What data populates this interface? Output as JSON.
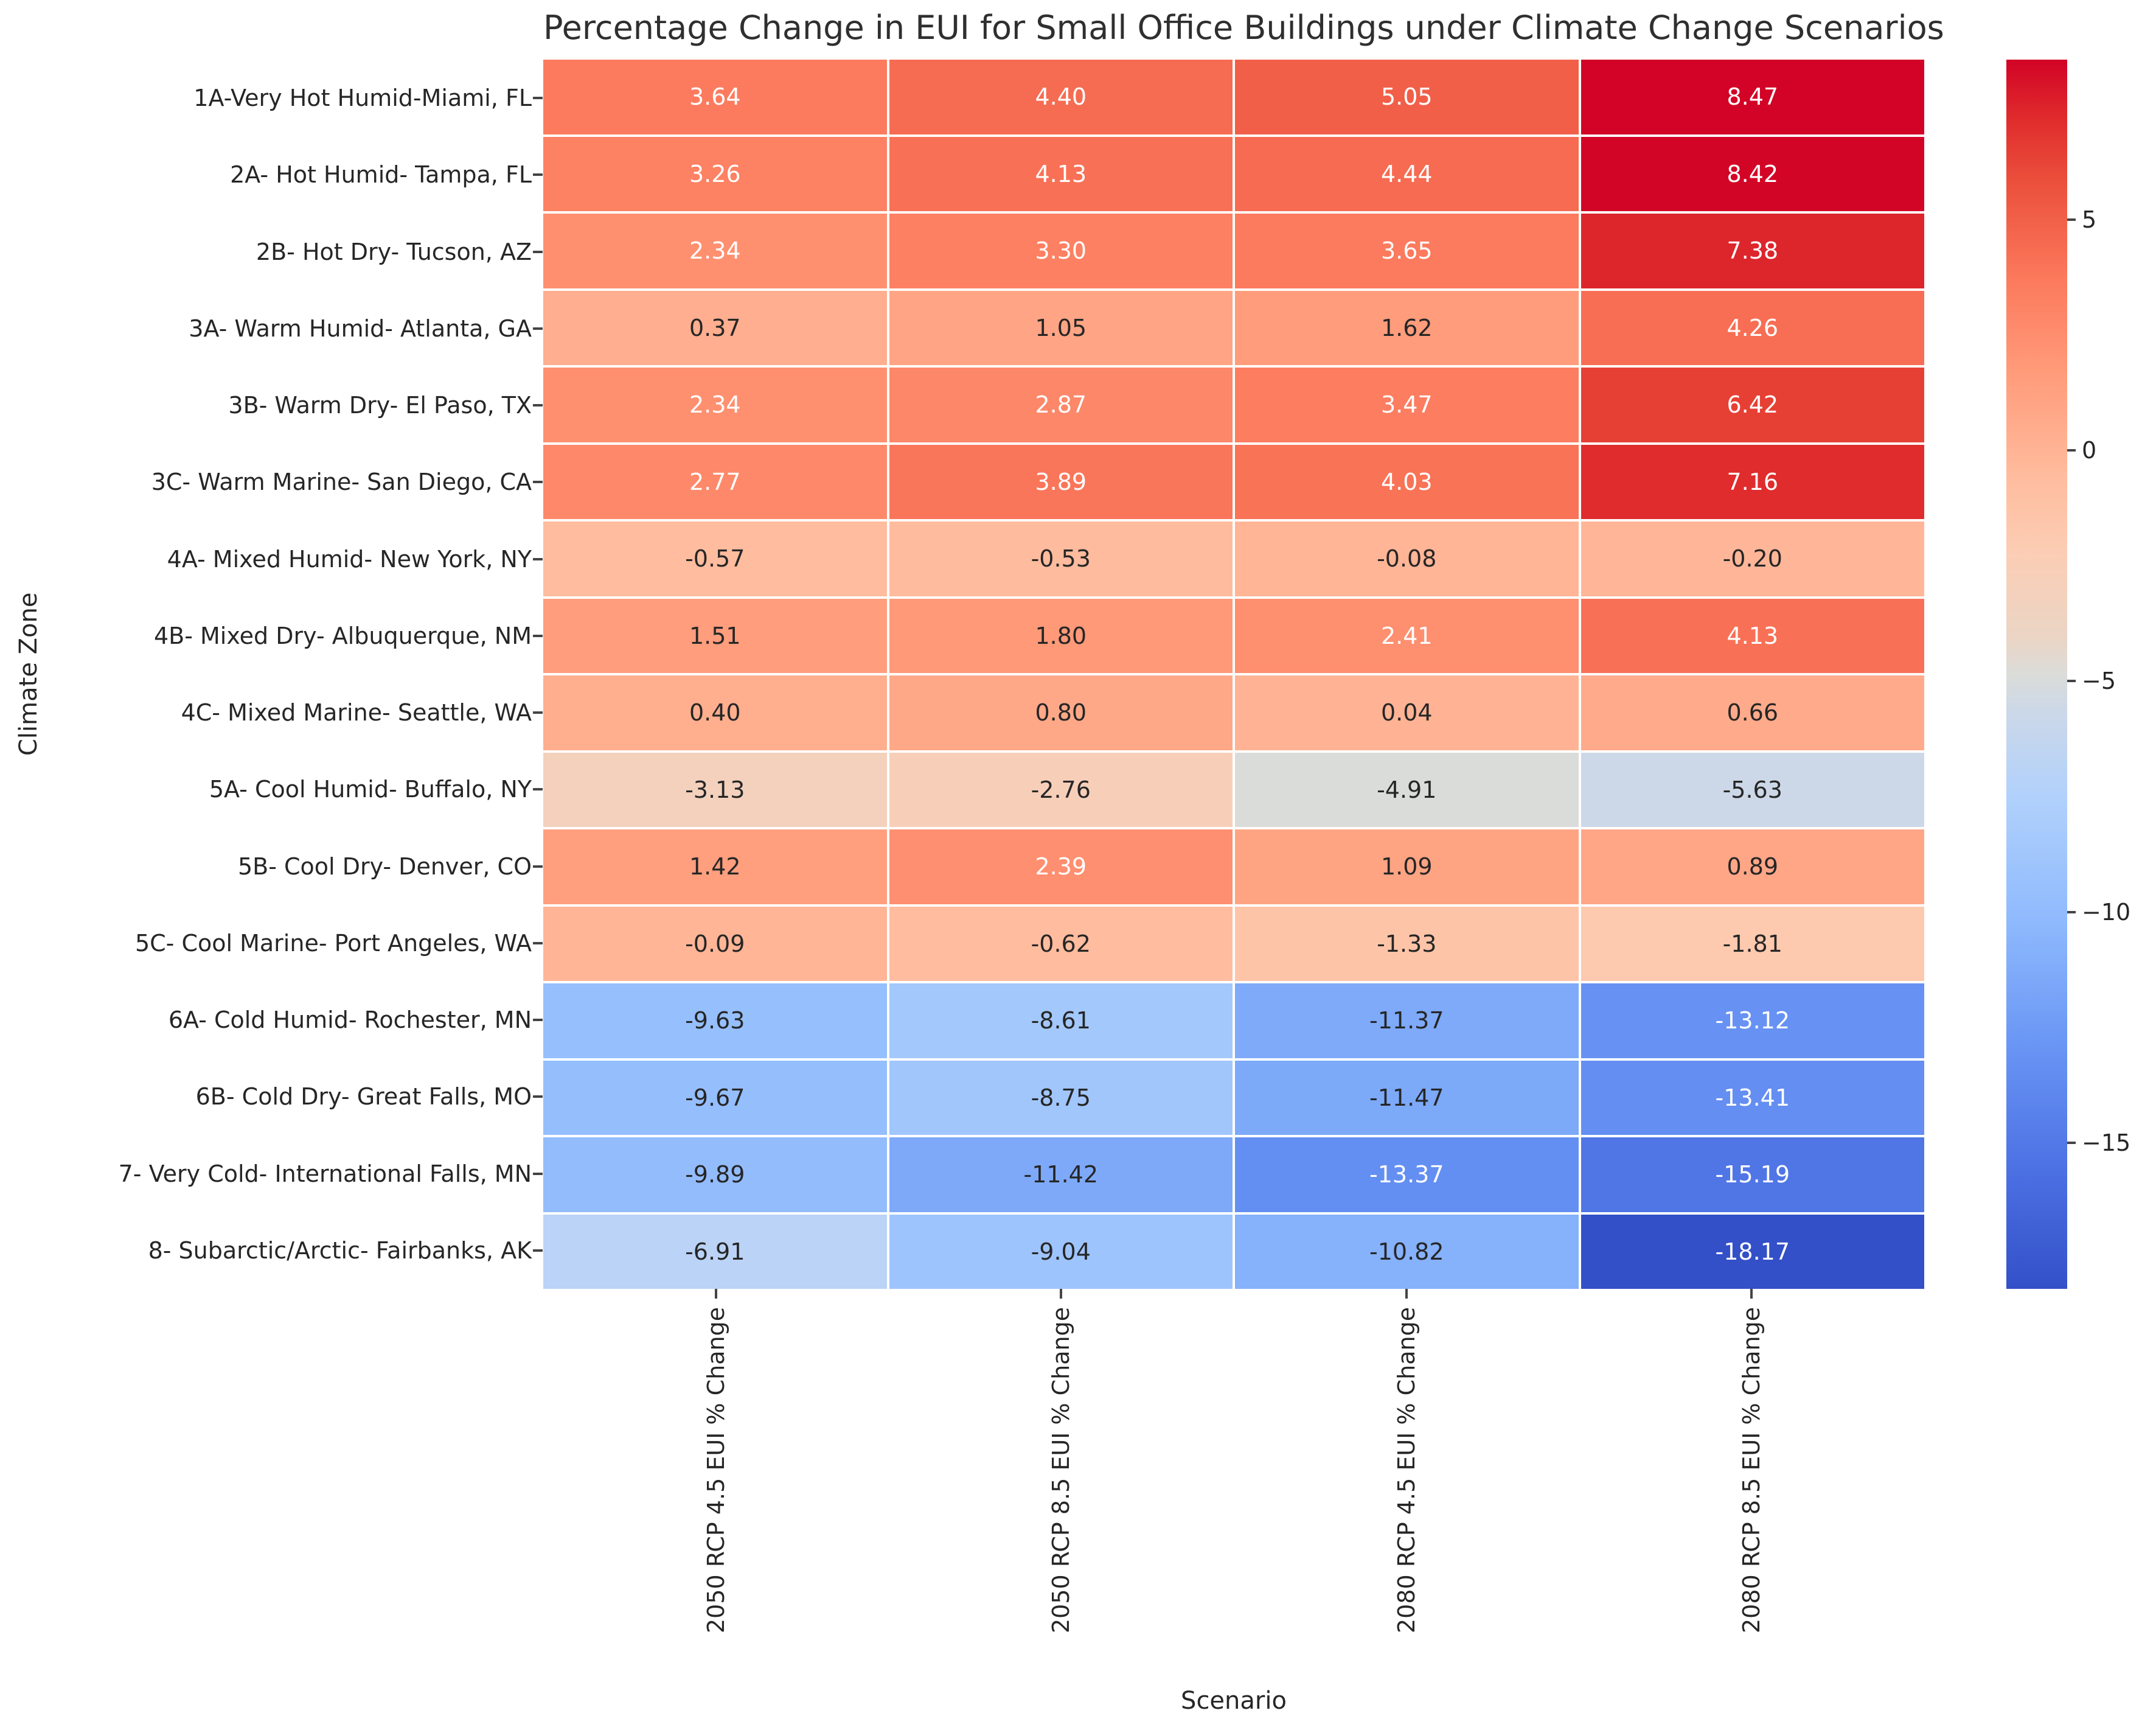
{
  "chart_data": {
    "type": "heatmap",
    "title": "Percentage Change in EUI for Small Office Buildings under Climate Change Scenarios",
    "xlabel": "Scenario",
    "ylabel": "Climate Zone",
    "columns": [
      "2050 RCP 4.5 EUI % Change",
      "2050 RCP 8.5 EUI % Change",
      "2080 RCP 4.5 EUI % Change",
      "2080 RCP 8.5 EUI % Change"
    ],
    "rows": [
      "1A-Very Hot Humid-Miami, FL",
      "2A- Hot Humid- Tampa, FL",
      "2B- Hot Dry- Tucson, AZ",
      "3A- Warm Humid- Atlanta, GA",
      "3B- Warm Dry- El Paso, TX",
      "3C- Warm Marine- San Diego, CA",
      "4A- Mixed Humid- New York, NY",
      "4B- Mixed Dry- Albuquerque, NM",
      "4C- Mixed Marine- Seattle, WA",
      "5A- Cool Humid- Buffalo, NY",
      "5B- Cool Dry- Denver, CO",
      "5C- Cool Marine- Port Angeles, WA",
      "6A- Cold Humid- Rochester, MN",
      "6B- Cold Dry- Great Falls, MO",
      "7- Very Cold- International Falls, MN",
      "8- Subarctic/Arctic- Fairbanks, AK"
    ],
    "values": [
      [
        3.64,
        4.4,
        5.05,
        8.47
      ],
      [
        3.26,
        4.13,
        4.44,
        8.42
      ],
      [
        2.34,
        3.3,
        3.65,
        7.38
      ],
      [
        0.37,
        1.05,
        1.62,
        4.26
      ],
      [
        2.34,
        2.87,
        3.47,
        6.42
      ],
      [
        2.77,
        3.89,
        4.03,
        7.16
      ],
      [
        -0.57,
        -0.53,
        -0.08,
        -0.2
      ],
      [
        1.51,
        1.8,
        2.41,
        4.13
      ],
      [
        0.4,
        0.8,
        0.04,
        0.66
      ],
      [
        -3.13,
        -2.76,
        -4.91,
        -5.63
      ],
      [
        1.42,
        2.39,
        1.09,
        0.89
      ],
      [
        -0.09,
        -0.62,
        -1.33,
        -1.81
      ],
      [
        -9.63,
        -8.61,
        -11.37,
        -13.12
      ],
      [
        -9.67,
        -8.75,
        -11.47,
        -13.41
      ],
      [
        -9.89,
        -11.42,
        -13.37,
        -15.19
      ],
      [
        -6.91,
        -9.04,
        -10.82,
        -18.17
      ]
    ],
    "value_decimals": 2,
    "colorbar": {
      "ticks": [
        5,
        0,
        -5,
        -10,
        -15
      ],
      "vmin": -18.17,
      "vmax": 8.47,
      "colormap": "coolwarm",
      "color_max": "#d20326",
      "color_mid": "#dbdcd9",
      "color_min": "#3350c8"
    },
    "legend_position": "right",
    "grid_color": "#ffffff"
  }
}
